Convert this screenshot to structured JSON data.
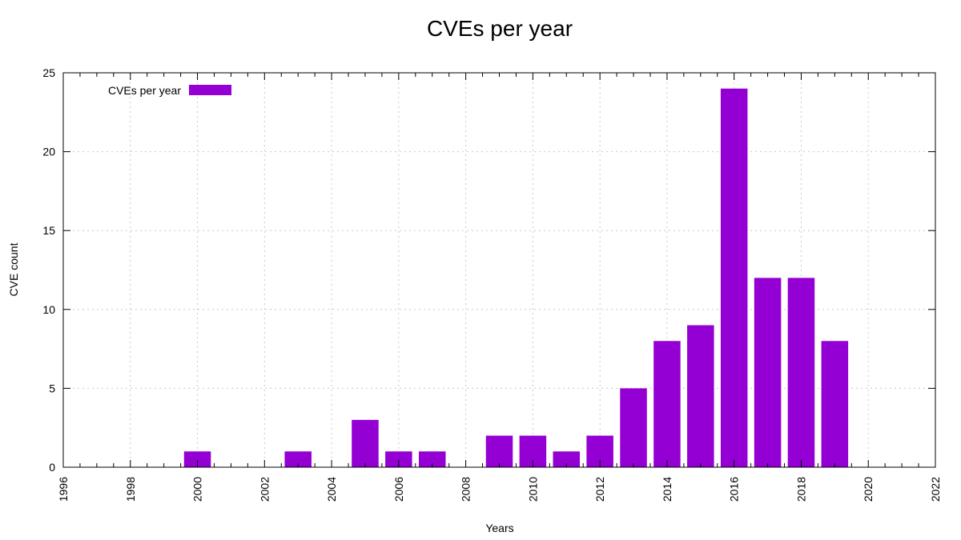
{
  "chart_data": {
    "type": "bar",
    "title": "CVEs per year",
    "xlabel": "Years",
    "ylabel": "CVE count",
    "xlim": [
      1996,
      2022
    ],
    "ylim": [
      0,
      25
    ],
    "x_ticks": [
      "1996",
      "1998",
      "2000",
      "2002",
      "2004",
      "2006",
      "2008",
      "2010",
      "2012",
      "2014",
      "2016",
      "2018",
      "2020",
      "2022"
    ],
    "y_ticks": [
      "0",
      "5",
      "10",
      "15",
      "20",
      "25"
    ],
    "grid": true,
    "legend_position": "top-left",
    "series": [
      {
        "name": "CVEs per year",
        "color": "#9400d3",
        "x": [
          2000,
          2003,
          2005,
          2006,
          2007,
          2009,
          2010,
          2011,
          2012,
          2013,
          2014,
          2015,
          2016,
          2017,
          2018,
          2019
        ],
        "values": [
          1,
          1,
          3,
          1,
          1,
          2,
          2,
          1,
          2,
          5,
          8,
          9,
          24,
          12,
          12,
          8
        ]
      }
    ]
  }
}
